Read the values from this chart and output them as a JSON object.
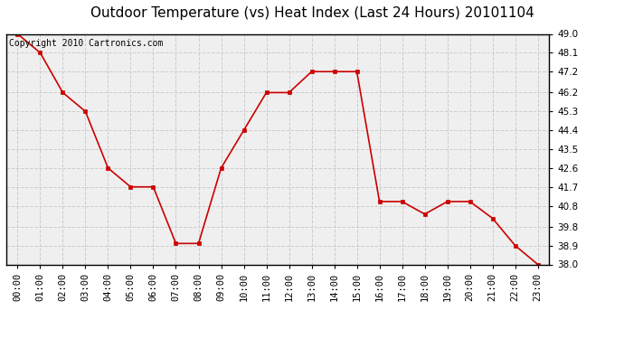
{
  "title": "Outdoor Temperature (vs) Heat Index (Last 24 Hours) 20101104",
  "copyright_text": "Copyright 2010 Cartronics.com",
  "x_labels": [
    "00:00",
    "01:00",
    "02:00",
    "03:00",
    "04:00",
    "05:00",
    "06:00",
    "07:00",
    "08:00",
    "09:00",
    "10:00",
    "11:00",
    "12:00",
    "13:00",
    "14:00",
    "15:00",
    "16:00",
    "17:00",
    "18:00",
    "19:00",
    "20:00",
    "21:00",
    "22:00",
    "23:00"
  ],
  "y_values": [
    49.0,
    48.1,
    46.2,
    45.3,
    42.6,
    41.7,
    41.7,
    39.0,
    39.0,
    42.6,
    44.4,
    46.2,
    46.2,
    47.2,
    47.2,
    47.2,
    41.0,
    41.0,
    40.4,
    41.0,
    41.0,
    40.2,
    38.9,
    38.0
  ],
  "ylim_min": 38.0,
  "ylim_max": 49.0,
  "y_ticks": [
    38.0,
    38.9,
    39.8,
    40.8,
    41.7,
    42.6,
    43.5,
    44.4,
    45.3,
    46.2,
    47.2,
    48.1,
    49.0
  ],
  "line_color": "#cc0000",
  "marker": "s",
  "marker_size": 2.5,
  "background_color": "#ffffff",
  "plot_bg_color": "#efefef",
  "grid_color": "#cccccc",
  "title_fontsize": 11,
  "tick_fontsize": 7.5,
  "copyright_fontsize": 7
}
